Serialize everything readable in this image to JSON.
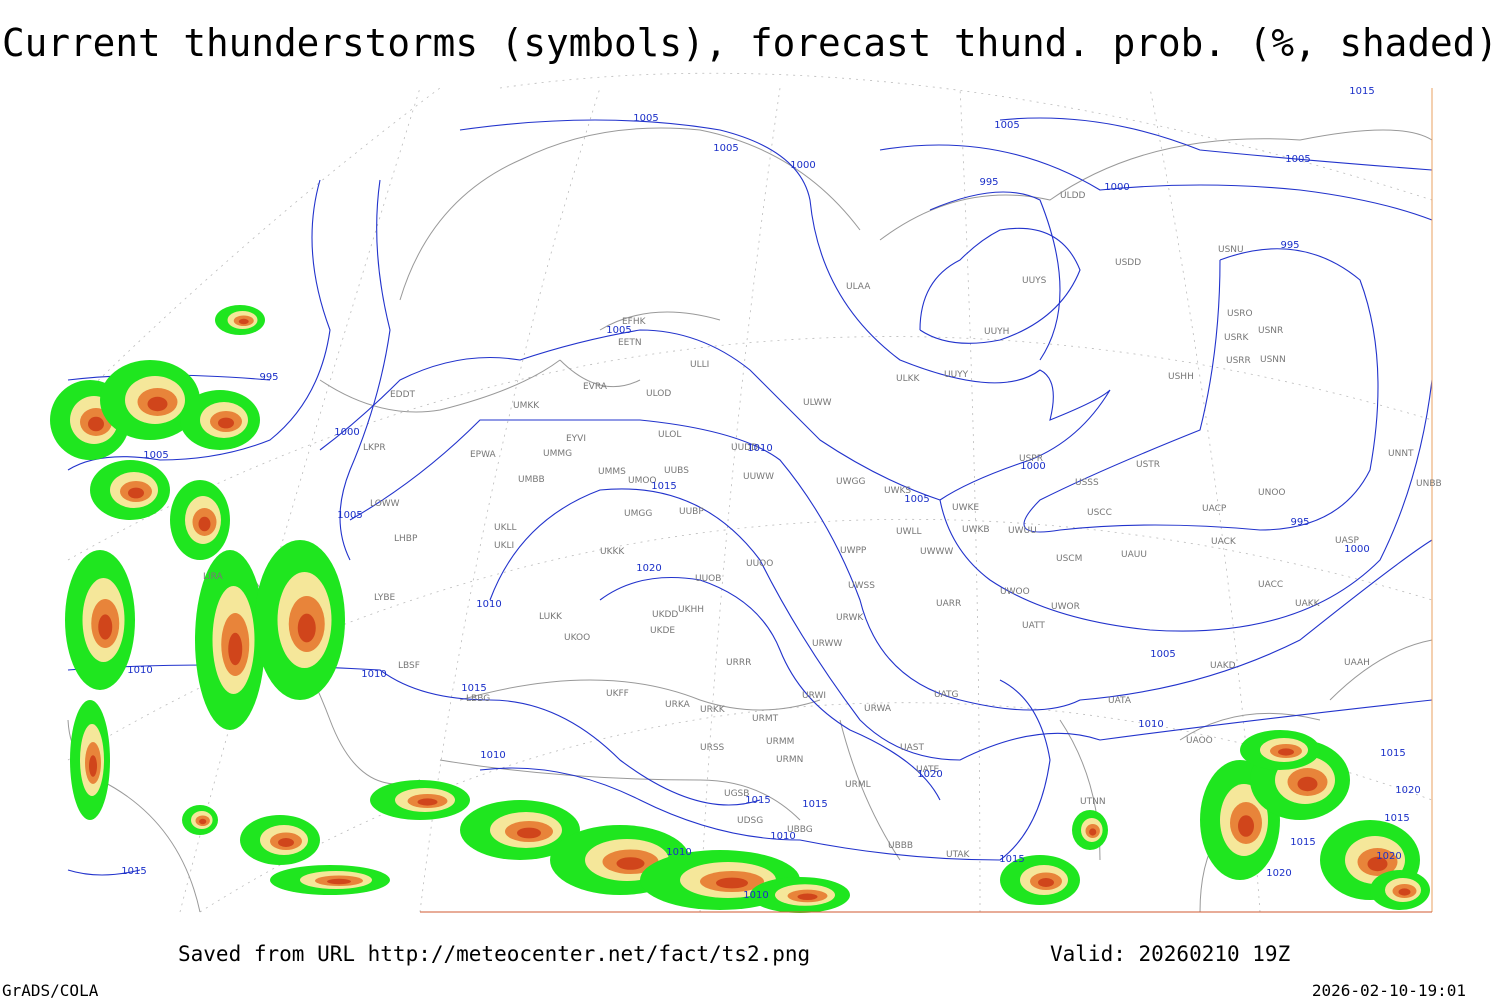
{
  "header": {
    "title": "Current thunderstorms (symbols), forecast thund. prob. (%, shaded)"
  },
  "footer": {
    "saved": "Saved from URL http://meteocenter.net/fact/ts2.png",
    "valid": "Valid: 20260210 19Z",
    "software": "GrADS/COLA",
    "timestamp": "2026-02-10-19:01"
  },
  "stations": [
    "ULDD",
    "USDD",
    "UUYS",
    "ULAA",
    "UUYH",
    "USNU",
    "USRO",
    "USRK",
    "USNR",
    "USRR",
    "USNN",
    "USHH",
    "UUYY",
    "ULKK",
    "ULWW",
    "ULLI",
    "EETN",
    "EFHK",
    "ULOL",
    "ULOD",
    "EVRA",
    "UMKK",
    "EYVI",
    "UMMG",
    "EPWA",
    "EDDT",
    "LKPR",
    "LOWW",
    "LHBP",
    "UMMS",
    "UMOO",
    "UUBS",
    "UMBB",
    "UUWW",
    "UUDD",
    "UMGG",
    "UUBP",
    "UKLL",
    "UKLI",
    "UKKK",
    "UUOO",
    "UWGG",
    "UWKS",
    "UWKE",
    "UWLL",
    "UWKB",
    "UWUU",
    "UWWW",
    "UWPP",
    "USPR",
    "USTR",
    "USSS",
    "USCC",
    "USCM",
    "UAUU",
    "UACP",
    "UACK",
    "UNOO",
    "UNNT",
    "UNBB",
    "UASP",
    "UACC",
    "UAKK",
    "UAAH",
    "UAKD",
    "UATA",
    "UAOO",
    "LIRA",
    "LYBE",
    "LBSF",
    "LBBG",
    "UKOO",
    "LUKK",
    "UKFF",
    "URKA",
    "URKK",
    "URMT",
    "URSS",
    "URMM",
    "URMN",
    "URML",
    "UGSB",
    "UDSG",
    "UBBG",
    "UBBB",
    "UTAK",
    "UTNN",
    "UATT",
    "UARR",
    "UWOO",
    "UWOR",
    "URWW",
    "URWI",
    "URWA",
    "UATG",
    "UKHH",
    "UKDD",
    "UKDE",
    "URRR",
    "UUOB",
    "UWSS",
    "URWK",
    "UATE",
    "UAST"
  ],
  "isobar_labels": [
    1005,
    1005,
    1000,
    1005,
    995,
    1000,
    1005,
    1015,
    995,
    1005,
    995,
    1000,
    1005,
    1005,
    1010,
    1015,
    1020,
    1010,
    1010,
    1010,
    1015,
    1010,
    1005,
    1000,
    995,
    1000,
    1005,
    1010,
    1015,
    1020,
    1015,
    1015,
    1010,
    1010,
    1010,
    1015,
    1015,
    1020,
    1015,
    1015,
    1020,
    1020
  ]
}
